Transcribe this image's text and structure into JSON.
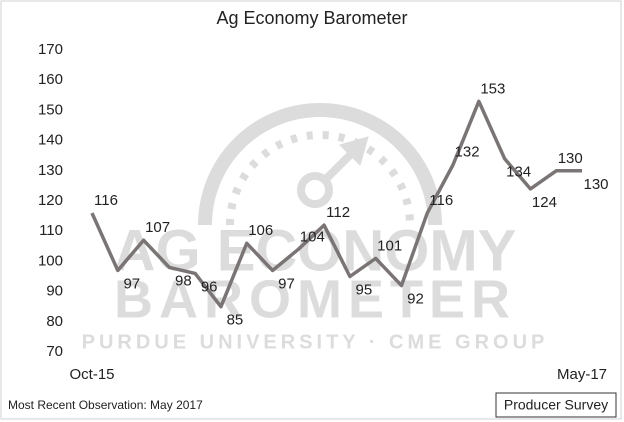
{
  "chart_data": {
    "type": "line",
    "title": "Ag Economy Barometer",
    "categories": [
      "Oct-15",
      null,
      null,
      null,
      null,
      null,
      null,
      null,
      null,
      null,
      null,
      null,
      null,
      null,
      null,
      null,
      null,
      null,
      null,
      "May-17"
    ],
    "series": [
      {
        "name": "Ag Economy Barometer",
        "color": "#7a7574",
        "values": [
          116,
          97,
          107,
          98,
          96,
          85,
          106,
          97,
          104,
          112,
          95,
          101,
          92,
          116,
          132,
          153,
          134,
          124,
          130,
          130
        ]
      }
    ],
    "ylim": [
      70,
      170
    ],
    "yticks": [
      70,
      80,
      90,
      100,
      110,
      120,
      130,
      140,
      150,
      160,
      170
    ],
    "grid": false,
    "watermark": [
      "AG ECONOMY",
      "BAROMETER",
      "PURDUE UNIVERSITY · CME GROUP"
    ],
    "footnote": "Most Recent Observation: May 2017",
    "source_box": "Producer Survey"
  }
}
